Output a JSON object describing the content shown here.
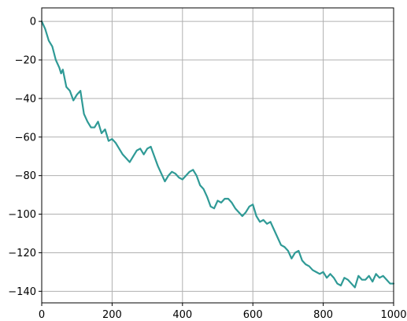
{
  "chart_data": {
    "type": "line",
    "title": "",
    "xlabel": "",
    "ylabel": "",
    "xlim": [
      0,
      1000
    ],
    "ylim": [
      -146,
      7
    ],
    "xticks": [
      0,
      200,
      400,
      600,
      800,
      1000
    ],
    "yticks": [
      0,
      -20,
      -40,
      -60,
      -80,
      -100,
      -120,
      -140
    ],
    "xtick_labels": [
      "0",
      "200",
      "400",
      "600",
      "800",
      "1000"
    ],
    "ytick_labels": [
      "0",
      "−20",
      "−40",
      "−60",
      "−80",
      "−100",
      "−120",
      "−140"
    ],
    "grid": true,
    "legend": "none",
    "series": [
      {
        "color": "#2f9a96",
        "x": [
          0,
          10,
          20,
          30,
          40,
          50,
          55,
          60,
          70,
          80,
          90,
          100,
          110,
          120,
          130,
          140,
          150,
          160,
          170,
          180,
          190,
          200,
          210,
          220,
          230,
          240,
          250,
          260,
          270,
          280,
          290,
          300,
          310,
          320,
          330,
          340,
          350,
          360,
          370,
          380,
          390,
          400,
          410,
          420,
          430,
          440,
          450,
          460,
          470,
          480,
          490,
          500,
          510,
          520,
          530,
          540,
          550,
          560,
          570,
          580,
          590,
          600,
          610,
          620,
          630,
          640,
          650,
          660,
          670,
          680,
          690,
          700,
          710,
          720,
          730,
          740,
          750,
          760,
          770,
          780,
          790,
          800,
          810,
          820,
          830,
          840,
          850,
          860,
          870,
          880,
          890,
          900,
          910,
          920,
          930,
          940,
          950,
          960,
          970,
          980,
          990,
          1000
        ],
        "values": [
          0,
          -4,
          -10,
          -13,
          -20,
          -24,
          -27,
          -25,
          -34,
          -36,
          -41,
          -38,
          -36,
          -48,
          -52,
          -55,
          -55,
          -52,
          -58,
          -56,
          -62,
          -61,
          -63,
          -66,
          -69,
          -71,
          -73,
          -70,
          -67,
          -66,
          -69,
          -66,
          -65,
          -70,
          -75,
          -79,
          -83,
          -80,
          -78,
          -79,
          -81,
          -82,
          -80,
          -78,
          -77,
          -80,
          -85,
          -87,
          -91,
          -96,
          -97,
          -93,
          -94,
          -92,
          -92,
          -94,
          -97,
          -99,
          -101,
          -99,
          -96,
          -95,
          -101,
          -104,
          -103,
          -105,
          -104,
          -108,
          -112,
          -116,
          -117,
          -119,
          -123,
          -120,
          -119,
          -124,
          -126,
          -127,
          -129,
          -130,
          -131,
          -130,
          -133,
          -131,
          -133,
          -136,
          -137,
          -133,
          -134,
          -136,
          -138,
          -132,
          -134,
          -134,
          -132,
          -135,
          -131,
          -133,
          -132,
          -134,
          -136,
          -136
        ]
      }
    ]
  }
}
